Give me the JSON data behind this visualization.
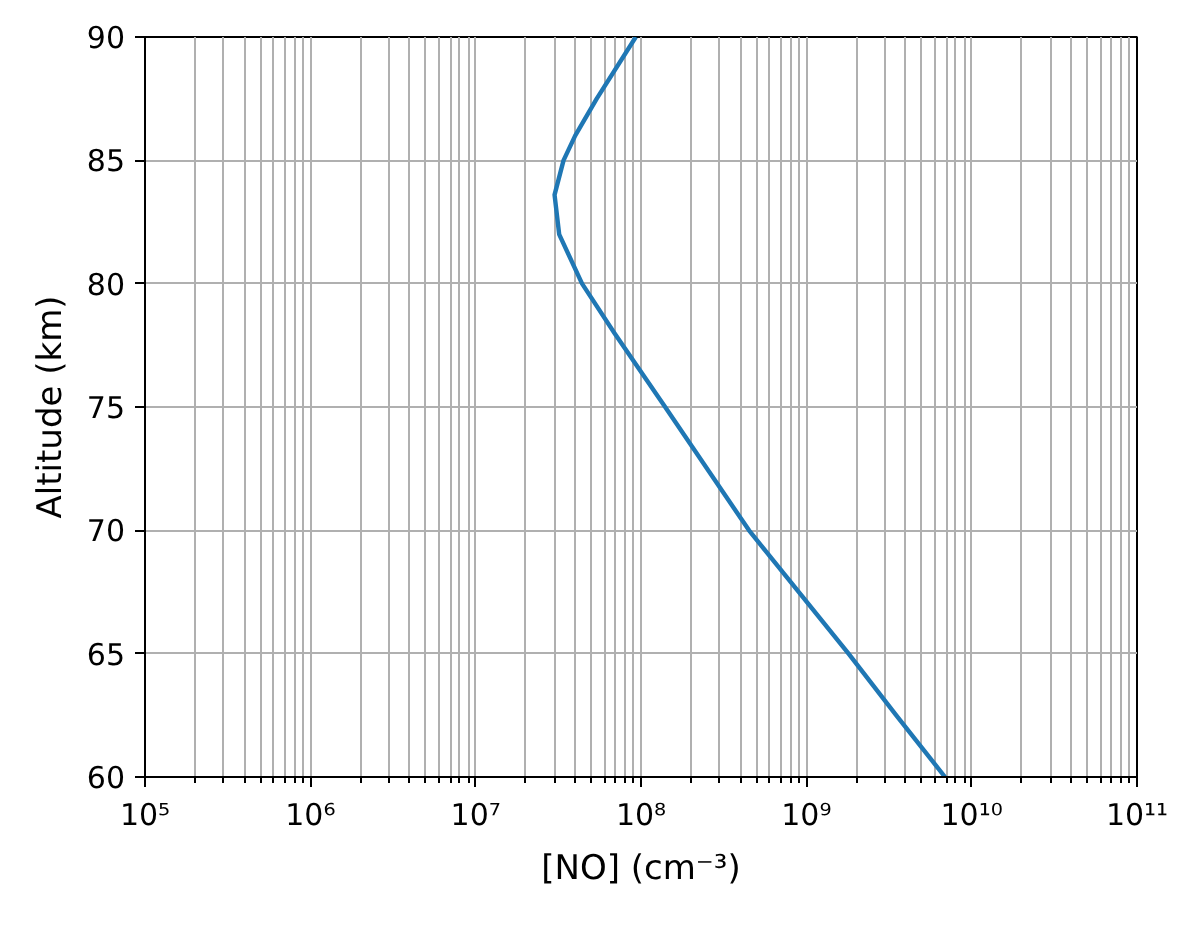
{
  "chart_data": {
    "type": "line",
    "xlabel": "[NO] (cm⁻³)",
    "ylabel": "Altitude (km)",
    "log": "x",
    "grid": true,
    "xlim": [
      100000.0,
      100000000000.0
    ],
    "xticks": [
      {
        "value": 100000.0,
        "label": "10⁵"
      },
      {
        "value": 1000000.0,
        "label": "10⁶"
      },
      {
        "value": 10000000.0,
        "label": "10⁷"
      },
      {
        "value": 100000000.0,
        "label": "10⁸"
      },
      {
        "value": 1000000000.0,
        "label": "10⁹"
      },
      {
        "value": 10000000000.0,
        "label": "10¹⁰"
      },
      {
        "value": 100000000000.0,
        "label": "10¹¹"
      }
    ],
    "ylim": [
      60,
      90
    ],
    "yticks": [
      60,
      65,
      70,
      75,
      80,
      85,
      90
    ],
    "series": [
      {
        "color": "#1f77b4",
        "x": [
          6900000000.0,
          3500000000.0,
          1800000000.0,
          450000000.0,
          140000000.0,
          69000000.0,
          44000000.0,
          32000000.0,
          30000000.0,
          34000000.0,
          40000000.0,
          54000000.0,
          93000000.0
        ],
        "values": [
          60,
          62.5,
          65,
          70,
          75,
          78,
          80,
          82,
          83.6,
          85,
          86,
          87.5,
          90
        ]
      }
    ]
  }
}
